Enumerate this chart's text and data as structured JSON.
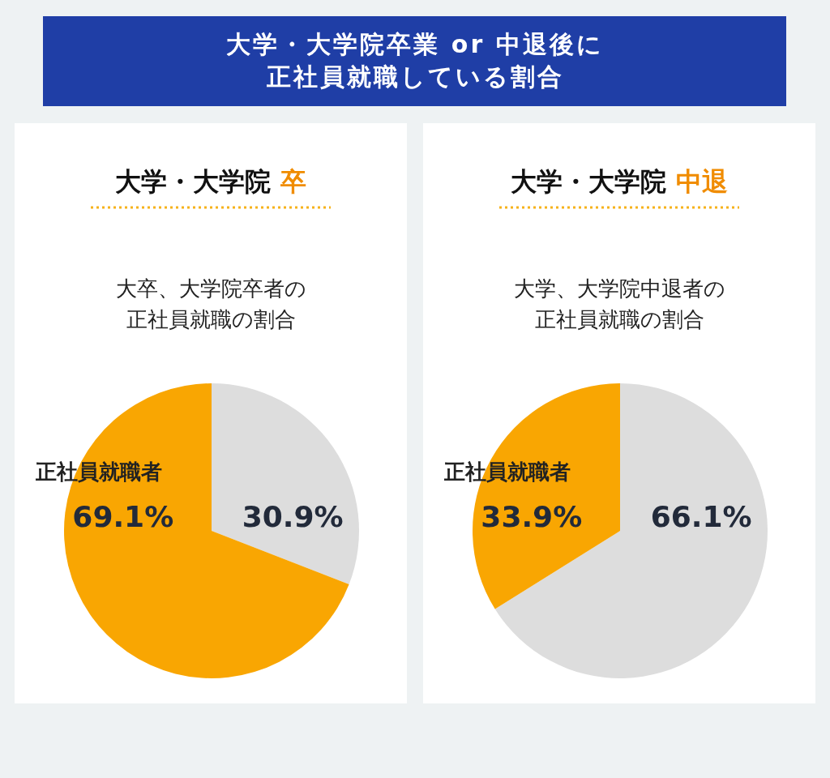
{
  "chart_data": [
    {
      "type": "other",
      "title": "大学・大学院卒業 or 中退後に正社員就職している割合"
    },
    {
      "type": "pie",
      "title": "大学・大学院 卒",
      "subtitle": "大卒、大学院卒者の正社員就職の割合",
      "categories": [
        null,
        "正社員就職者"
      ],
      "values": [
        30.9,
        69.1
      ],
      "value_labels": [
        "30.9%",
        "69.1%"
      ],
      "colors": [
        "#dddddd",
        "#f9a602"
      ]
    },
    {
      "type": "pie",
      "title": "大学・大学院 中退",
      "subtitle": "大学、大学院中退者の正社員就職の割合",
      "categories": [
        null,
        "正社員就職者"
      ],
      "values": [
        66.1,
        33.9
      ],
      "value_labels": [
        "66.1%",
        "33.9%"
      ],
      "colors": [
        "#dddddd",
        "#f9a602"
      ]
    }
  ]
}
